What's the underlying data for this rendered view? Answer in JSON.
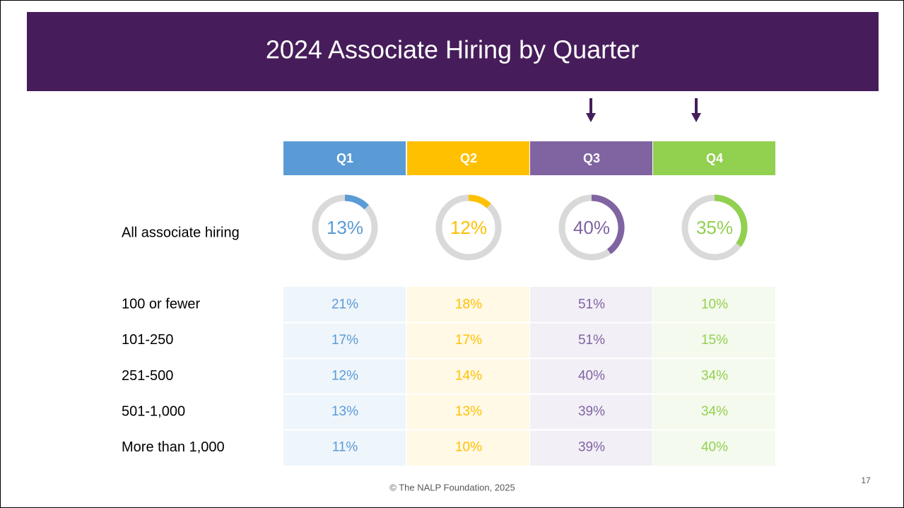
{
  "title": "2024 Associate Hiring by Quarter",
  "quarters": [
    {
      "name": "Q1",
      "color": "#5b9bd5"
    },
    {
      "name": "Q2",
      "color": "#ffc000"
    },
    {
      "name": "Q3",
      "color": "#8064a2"
    },
    {
      "name": "Q4",
      "color": "#92d050"
    }
  ],
  "all_hiring": {
    "label": "All associate hiring",
    "values": [
      13,
      12,
      40,
      35
    ],
    "value_labels": [
      "13%",
      "12%",
      "40%",
      "35%"
    ]
  },
  "table": {
    "rows": [
      {
        "label": "100 or fewer",
        "cells": [
          "21%",
          "18%",
          "51%",
          "10%"
        ]
      },
      {
        "label": "101-250",
        "cells": [
          "17%",
          "17%",
          "51%",
          "15%"
        ]
      },
      {
        "label": "251-500",
        "cells": [
          "12%",
          "14%",
          "40%",
          "34%"
        ]
      },
      {
        "label": "501-1,000",
        "cells": [
          "13%",
          "13%",
          "39%",
          "34%"
        ]
      },
      {
        "label": "More than 1,000",
        "cells": [
          "11%",
          "10%",
          "39%",
          "40%"
        ]
      }
    ]
  },
  "footer": "© The NALP Foundation, 2025",
  "page_number": "17"
}
